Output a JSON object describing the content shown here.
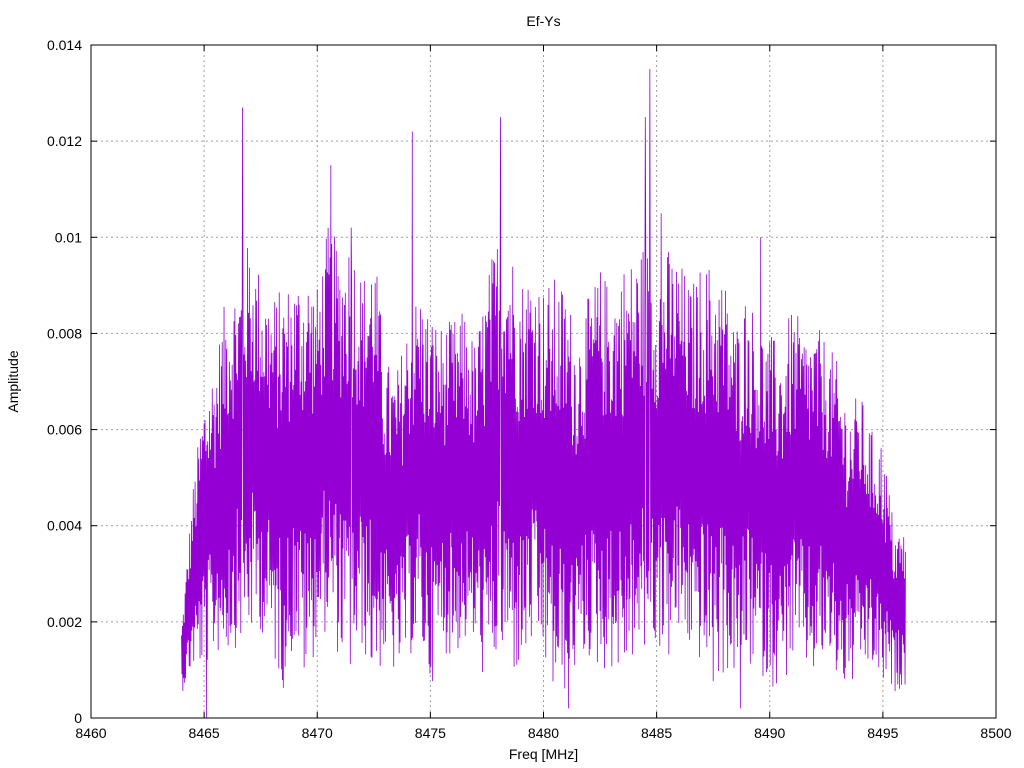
{
  "chart_data": {
    "type": "line",
    "title": "Ef-Ys",
    "xlabel": "Freq [MHz]",
    "ylabel": "Amplitude",
    "xlim": [
      8460,
      8500
    ],
    "ylim": [
      0,
      0.014
    ],
    "x_ticks": [
      8460,
      8465,
      8470,
      8475,
      8480,
      8485,
      8490,
      8495,
      8500
    ],
    "y_ticks": [
      0,
      0.002,
      0.004,
      0.006,
      0.008,
      0.01,
      0.012,
      0.014
    ],
    "x_tick_labels": [
      "8460",
      "8465",
      "8470",
      "8475",
      "8480",
      "8485",
      "8490",
      "8495",
      "8500"
    ],
    "y_tick_labels": [
      "0",
      "0.002",
      "0.004",
      "0.006",
      "0.008",
      "0.01",
      "0.012",
      "0.014"
    ],
    "grid": true,
    "line_color": "#9400d3",
    "series": [
      {
        "x_start": 8464.0,
        "x_end": 8496.0,
        "envelope_x": [
          8464.0,
          8464.5,
          8465.0,
          8465.5,
          8466.0,
          8466.5,
          8467.0,
          8467.5,
          8468.0,
          8468.5,
          8469.0,
          8469.5,
          8470.0,
          8470.5,
          8471.0,
          8471.5,
          8472.0,
          8472.5,
          8473.0,
          8473.5,
          8474.0,
          8474.5,
          8475.0,
          8475.5,
          8476.0,
          8476.5,
          8477.0,
          8477.5,
          8478.0,
          8478.5,
          8479.0,
          8479.5,
          8480.0,
          8480.5,
          8481.0,
          8481.5,
          8482.0,
          8482.5,
          8483.0,
          8483.5,
          8484.0,
          8484.5,
          8485.0,
          8485.5,
          8486.0,
          8486.5,
          8487.0,
          8487.5,
          8488.0,
          8488.5,
          8489.0,
          8489.5,
          8490.0,
          8490.5,
          8491.0,
          8491.5,
          8492.0,
          8492.5,
          8493.0,
          8493.5,
          8494.0,
          8494.5,
          8495.0,
          8495.5,
          8496.0
        ],
        "envelope_high": [
          0.0019,
          0.0048,
          0.0068,
          0.0075,
          0.0089,
          0.0092,
          0.01,
          0.0093,
          0.0088,
          0.009,
          0.0092,
          0.0095,
          0.009,
          0.0103,
          0.0098,
          0.0102,
          0.0092,
          0.01,
          0.0075,
          0.0072,
          0.0083,
          0.009,
          0.0085,
          0.0082,
          0.0083,
          0.0085,
          0.0078,
          0.0092,
          0.0102,
          0.01,
          0.0092,
          0.0095,
          0.009,
          0.0092,
          0.009,
          0.008,
          0.0088,
          0.0094,
          0.009,
          0.0095,
          0.0096,
          0.01,
          0.0094,
          0.0098,
          0.0096,
          0.009,
          0.0095,
          0.0095,
          0.0092,
          0.0082,
          0.009,
          0.0082,
          0.008,
          0.0078,
          0.0086,
          0.0081,
          0.0082,
          0.0079,
          0.0074,
          0.0065,
          0.0068,
          0.006,
          0.0058,
          0.004,
          0.0039
        ],
        "envelope_low": [
          0.0005,
          0.001,
          0.001,
          0.0013,
          0.0013,
          0.0015,
          0.0016,
          0.0018,
          0.0012,
          0.0006,
          0.0015,
          0.0006,
          0.0016,
          0.0018,
          0.0012,
          0.0008,
          0.0014,
          0.0007,
          0.0012,
          0.0008,
          0.0012,
          0.0015,
          0.0006,
          0.0014,
          0.0012,
          0.0015,
          0.0014,
          0.0005,
          0.0012,
          0.0009,
          0.0008,
          0.0014,
          0.0011,
          0.0003,
          0.0005,
          0.001,
          0.0012,
          0.0009,
          0.001,
          0.0008,
          0.0012,
          0.001,
          0.0015,
          0.0011,
          0.0016,
          0.0013,
          0.0011,
          0.0005,
          0.0009,
          0.0008,
          0.001,
          0.0009,
          0.0007,
          0.0005,
          0.0011,
          0.001,
          0.0008,
          0.0012,
          0.0007,
          0.0005,
          0.0009,
          0.001,
          0.0006,
          0.0005,
          0.0007
        ],
        "peaks": [
          {
            "x": 8466.7,
            "y": 0.0127
          },
          {
            "x": 8470.6,
            "y": 0.0115
          },
          {
            "x": 8474.2,
            "y": 0.0122
          },
          {
            "x": 8478.1,
            "y": 0.0125
          },
          {
            "x": 8484.7,
            "y": 0.0135
          },
          {
            "x": 8484.5,
            "y": 0.0125
          },
          {
            "x": 8471.5,
            "y": 0.0102
          },
          {
            "x": 8485.2,
            "y": 0.0105
          },
          {
            "x": 8489.6,
            "y": 0.01
          }
        ],
        "dips": [
          {
            "x": 8465.1,
            "y": 0.0
          },
          {
            "x": 8481.1,
            "y": 0.0002
          },
          {
            "x": 8488.7,
            "y": 0.0002
          }
        ]
      }
    ]
  }
}
